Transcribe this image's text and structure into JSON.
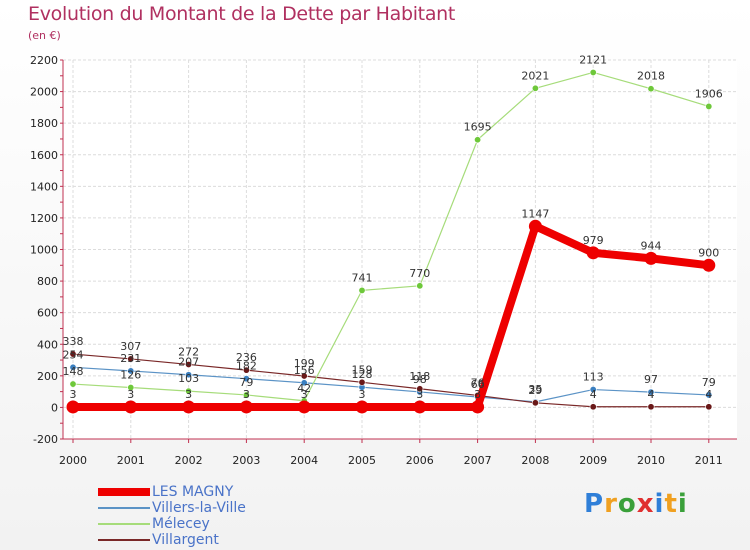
{
  "header": {
    "title": "Evolution du Montant de la Dette par Habitant",
    "subtitle": "(en €)"
  },
  "logo": {
    "text": "Proxiti",
    "letters": [
      {
        "char": "P",
        "color": "#2f7fd8"
      },
      {
        "char": "r",
        "color": "#f0a020"
      },
      {
        "char": "o",
        "color": "#3aa03a"
      },
      {
        "char": "x",
        "color": "#e03030"
      },
      {
        "char": "i",
        "color": "#2f7fd8"
      },
      {
        "char": "t",
        "color": "#f0a020"
      },
      {
        "char": "i",
        "color": "#3aa03a"
      }
    ]
  },
  "chart_data": {
    "type": "line",
    "title": "Evolution du Montant de la Dette par Habitant",
    "subtitle": "(en €)",
    "x": [
      "2000",
      "2001",
      "2002",
      "2003",
      "2004",
      "2005",
      "2006",
      "2007",
      "2008",
      "2009",
      "2010",
      "2011"
    ],
    "ylim": [
      -200,
      2200
    ],
    "yticks": [
      -200,
      0,
      200,
      400,
      600,
      800,
      1000,
      1200,
      1400,
      1600,
      1800,
      2000,
      2200
    ],
    "grid": true,
    "legend_position": "bottom-left",
    "series": [
      {
        "name": "Villers-la-Ville",
        "color": "#5b93c6",
        "marker_color": "#3a7fc0",
        "width": 1.2,
        "values": [
          254,
          231,
          207,
          182,
          156,
          128,
          98,
          66,
          35,
          113,
          97,
          79
        ],
        "labels": [
          "254",
          "231",
          "207",
          "182",
          "156",
          "128",
          "98",
          "66",
          "35",
          "113",
          "97",
          "79"
        ]
      },
      {
        "name": "Villargent",
        "color": "#7a2828",
        "marker_color": "#6a1818",
        "width": 1.2,
        "values": [
          338,
          307,
          272,
          236,
          199,
          159,
          118,
          76,
          29,
          4,
          4,
          4
        ],
        "labels": [
          "338",
          "307",
          "272",
          "236",
          "199",
          "159",
          "118",
          "76",
          "29",
          "4",
          "4",
          "4"
        ]
      },
      {
        "name": "Mélecey",
        "color": "#a6dc7a",
        "marker_color": "#6ec83a",
        "width": 1.2,
        "values": [
          148,
          126,
          103,
          79,
          42,
          741,
          770,
          1695,
          2021,
          2121,
          2018,
          1906
        ],
        "labels": [
          "148",
          "126",
          "103",
          "79",
          "42",
          "741",
          "770",
          "1695",
          "2021",
          "2121",
          "2018",
          "1906"
        ]
      },
      {
        "name": "LES MAGNY",
        "color": "#ee0000",
        "marker_color": "#ee0000",
        "width": 8,
        "values": [
          3,
          3,
          3,
          3,
          3,
          3,
          3,
          3,
          1147,
          979,
          944,
          900
        ],
        "labels": [
          "3",
          "3",
          "3",
          "3",
          "3",
          "3",
          "3",
          "3",
          "1147",
          "979",
          "944",
          "900"
        ]
      }
    ],
    "legend": [
      {
        "name": "LES MAGNY",
        "color": "#ee0000",
        "thickness": 8
      },
      {
        "name": "Villers-la-Ville",
        "color": "#5b93c6",
        "thickness": 2
      },
      {
        "name": "Mélecey",
        "color": "#a6dc7a",
        "thickness": 2
      },
      {
        "name": "Villargent",
        "color": "#7a2828",
        "thickness": 2
      }
    ]
  }
}
